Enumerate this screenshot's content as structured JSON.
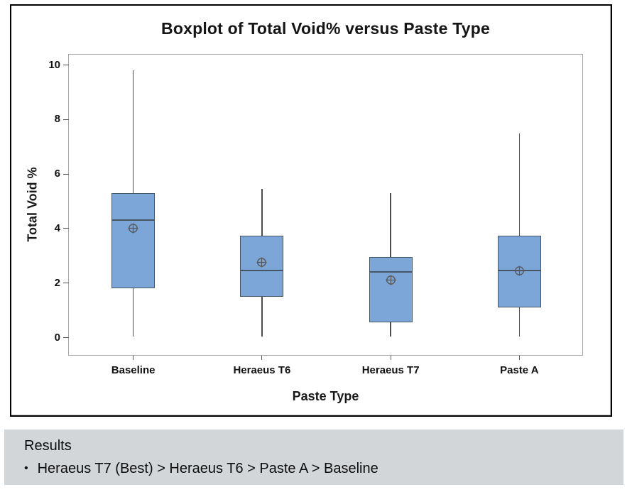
{
  "chart": {
    "title": "Boxplot of Total Void% versus Paste Type",
    "x_axis_title": "Paste Type",
    "y_axis_title": "Total Void %"
  },
  "chart_data": {
    "type": "boxplot",
    "title": "Boxplot of Total Void% versus Paste Type",
    "xlabel": "Paste Type",
    "ylabel": "Total Void %",
    "ylim": [
      -0.7,
      10.4
    ],
    "yticks": [
      0,
      2,
      4,
      6,
      8,
      10
    ],
    "grid": false,
    "categories": [
      "Baseline",
      "Heraeus T6",
      "Heraeus T7",
      "Paste A"
    ],
    "series": [
      {
        "name": "Baseline",
        "whisker_low": 0.05,
        "q1": 1.8,
        "median": 4.3,
        "q3": 5.3,
        "whisker_high": 9.8,
        "mean": 4.0
      },
      {
        "name": "Heraeus T6",
        "whisker_low": 0.05,
        "q1": 1.5,
        "median": 2.45,
        "q3": 3.75,
        "whisker_high": 5.45,
        "mean": 2.75
      },
      {
        "name": "Heraeus T7",
        "whisker_low": 0.05,
        "q1": 0.55,
        "median": 2.4,
        "q3": 2.95,
        "whisker_high": 5.3,
        "mean": 2.1
      },
      {
        "name": "Paste A",
        "whisker_low": 0.05,
        "q1": 1.1,
        "median": 2.45,
        "q3": 3.75,
        "whisker_high": 7.5,
        "mean": 2.45
      }
    ],
    "colors": {
      "box_fill": "#7CA5D8",
      "box_border": "#485563",
      "whisker": "#4d4d4d",
      "mean_marker": "#595959",
      "plot_border": "#a6a6a6",
      "results_background": "#d2d6d9"
    }
  },
  "results": {
    "heading": "Results",
    "bullet_marker": "●",
    "bullet": "Heraeus T7 (Best) > Heraeus T6 > Paste A > Baseline"
  }
}
